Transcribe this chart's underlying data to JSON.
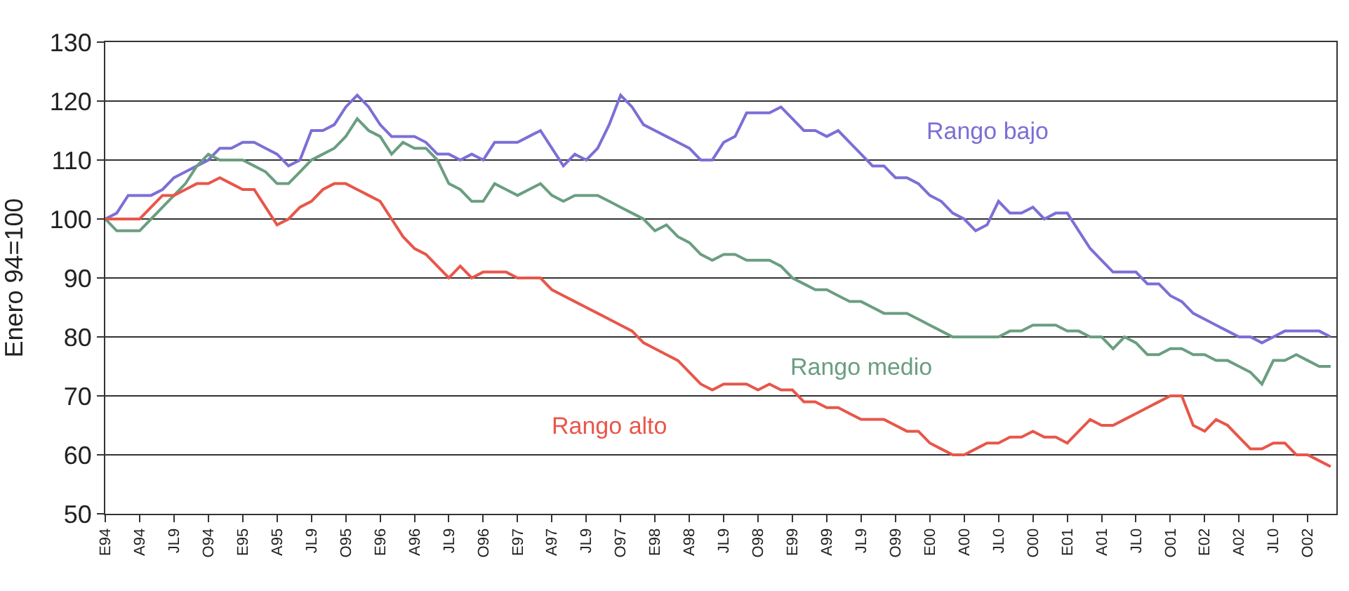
{
  "chart_data": {
    "type": "line",
    "ylabel": "Enero 94=100",
    "categories": [
      "E94",
      null,
      null,
      "A94",
      null,
      null,
      "JL9",
      null,
      null,
      "O94",
      null,
      null,
      "E95",
      null,
      null,
      "A95",
      null,
      null,
      "JL9",
      null,
      null,
      "O95",
      null,
      null,
      "E96",
      null,
      null,
      "A96",
      null,
      null,
      "JL9",
      null,
      null,
      "O96",
      null,
      null,
      "E97",
      null,
      null,
      "A97",
      null,
      null,
      "JL9",
      null,
      null,
      "O97",
      null,
      null,
      "E98",
      null,
      null,
      "A98",
      null,
      null,
      "JL9",
      null,
      null,
      "O98",
      null,
      null,
      "E99",
      null,
      null,
      "A99",
      null,
      null,
      "JL9",
      null,
      null,
      "O99",
      null,
      null,
      "E00",
      null,
      null,
      "A00",
      null,
      null,
      "JL0",
      null,
      null,
      "O00",
      null,
      null,
      "E01",
      null,
      null,
      "A01",
      null,
      null,
      "JL0",
      null,
      null,
      "O01",
      null,
      null,
      "E02",
      null,
      null,
      "A02",
      null,
      null,
      "JL0",
      null,
      null,
      "O02",
      null,
      null
    ],
    "series": [
      {
        "name": "Rango bajo",
        "color": "#7b6fd6",
        "values": [
          100,
          101,
          104,
          104,
          104,
          105,
          107,
          108,
          109,
          110,
          112,
          112,
          113,
          113,
          112,
          111,
          109,
          110,
          115,
          115,
          116,
          119,
          121,
          119,
          116,
          114,
          114,
          114,
          113,
          111,
          111,
          110,
          111,
          110,
          113,
          113,
          113,
          114,
          115,
          112,
          109,
          111,
          110,
          112,
          116,
          121,
          119,
          116,
          115,
          114,
          113,
          112,
          110,
          110,
          113,
          114,
          118,
          118,
          118,
          119,
          117,
          115,
          115,
          114,
          115,
          113,
          111,
          109,
          109,
          107,
          107,
          106,
          104,
          103,
          101,
          100,
          98,
          99,
          103,
          101,
          101,
          102,
          100,
          101,
          101,
          98,
          95,
          93,
          91,
          91,
          91,
          89,
          89,
          87,
          86,
          84,
          83,
          82,
          81,
          80,
          80,
          79,
          80,
          81,
          81,
          81,
          81,
          80
        ]
      },
      {
        "name": "Rango medio",
        "color": "#6a9e80",
        "values": [
          100,
          98,
          98,
          98,
          100,
          102,
          104,
          106,
          109,
          111,
          110,
          110,
          110,
          109,
          108,
          106,
          106,
          108,
          110,
          111,
          112,
          114,
          117,
          115,
          114,
          111,
          113,
          112,
          112,
          110,
          106,
          105,
          103,
          103,
          106,
          105,
          104,
          105,
          106,
          104,
          103,
          104,
          104,
          104,
          103,
          102,
          101,
          100,
          98,
          99,
          97,
          96,
          94,
          93,
          94,
          94,
          93,
          93,
          93,
          92,
          90,
          89,
          88,
          88,
          87,
          86,
          86,
          85,
          84,
          84,
          84,
          83,
          82,
          81,
          80,
          80,
          80,
          80,
          80,
          81,
          81,
          82,
          82,
          82,
          81,
          81,
          80,
          80,
          78,
          80,
          79,
          77,
          77,
          78,
          78,
          77,
          77,
          76,
          76,
          75,
          74,
          72,
          76,
          76,
          77,
          76,
          75,
          75
        ]
      },
      {
        "name": "Rango alto",
        "color": "#e8564a",
        "values": [
          100,
          100,
          100,
          100,
          102,
          104,
          104,
          105,
          106,
          106,
          107,
          106,
          105,
          105,
          102,
          99,
          100,
          102,
          103,
          105,
          106,
          106,
          105,
          104,
          103,
          100,
          97,
          95,
          94,
          92,
          90,
          92,
          90,
          91,
          91,
          91,
          90,
          90,
          90,
          88,
          87,
          86,
          85,
          84,
          83,
          82,
          81,
          79,
          78,
          77,
          76,
          74,
          72,
          71,
          72,
          72,
          72,
          71,
          72,
          71,
          71,
          69,
          69,
          68,
          68,
          67,
          66,
          66,
          66,
          65,
          64,
          64,
          62,
          61,
          60,
          60,
          61,
          62,
          62,
          63,
          63,
          64,
          63,
          63,
          62,
          64,
          66,
          65,
          65,
          66,
          67,
          68,
          69,
          70,
          70,
          65,
          64,
          66,
          65,
          63,
          61,
          61,
          62,
          62,
          60,
          60,
          59,
          58
        ]
      }
    ],
    "ylim": [
      50,
      130
    ],
    "yticks": [
      50,
      60,
      70,
      80,
      90,
      100,
      110,
      120,
      130
    ],
    "grid": "y",
    "legend": false,
    "line_style": "solid",
    "marker": "none"
  }
}
